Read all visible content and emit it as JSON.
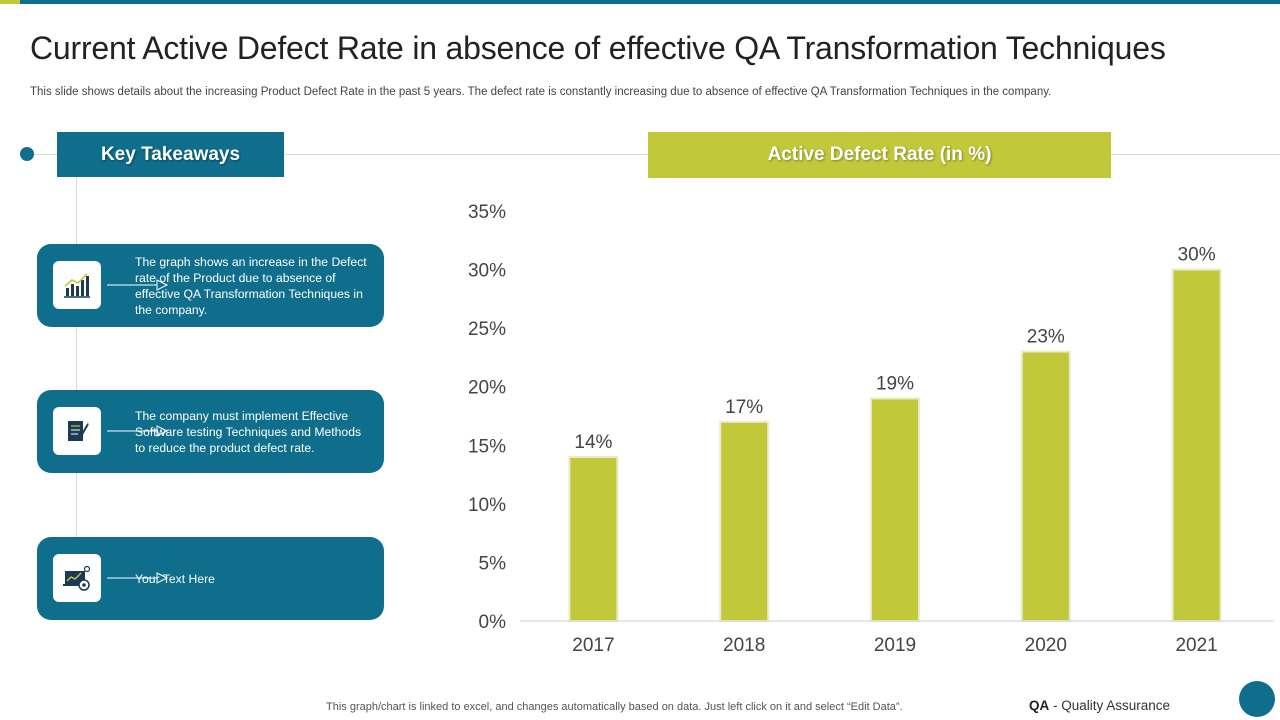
{
  "header": {
    "title": "Current Active Defect Rate in absence of effective QA Transformation Techniques",
    "subtitle": "This slide shows details about the increasing Product Defect Rate in the past 5 years. The defect rate is constantly increasing due to absence of effective QA Transformation Techniques in the company."
  },
  "colors": {
    "primary": "#0e6e8c",
    "accent": "#c1c83a",
    "bar": "#c1c83a"
  },
  "takeaways": {
    "heading": "Key Takeaways",
    "items": [
      {
        "icon": "bar-chart-icon",
        "text": "The graph shows an increase in the Defect rate of the Product due to absence of effective QA Transformation Techniques in the company."
      },
      {
        "icon": "document-pen-icon",
        "text": "The company must implement Effective Software testing Techniques and Methods to reduce the product defect rate."
      },
      {
        "icon": "laptop-gear-icon",
        "text": "Your Text Here"
      }
    ]
  },
  "chart_heading": "Active Defect Rate (in %)",
  "chart_data": {
    "type": "bar",
    "title": "Active Defect Rate (in %)",
    "categories": [
      "2017",
      "2018",
      "2019",
      "2020",
      "2021"
    ],
    "values": [
      14,
      17,
      19,
      23,
      30
    ],
    "data_labels": [
      "14%",
      "17%",
      "19%",
      "23%",
      "30%"
    ],
    "ylim": [
      0,
      35
    ],
    "yticks": [
      0,
      5,
      10,
      15,
      20,
      25,
      30,
      35
    ],
    "ytick_labels": [
      "0%",
      "5%",
      "10%",
      "15%",
      "20%",
      "25%",
      "30%",
      "35%"
    ],
    "xlabel": "",
    "ylabel": "",
    "grid": false
  },
  "footer": {
    "note": "This graph/chart is linked to excel,  and changes automatically based on data. Just left click on it and select “Edit Data”.",
    "legend_abbr": "QA",
    "legend_text": " - Quality Assurance"
  }
}
